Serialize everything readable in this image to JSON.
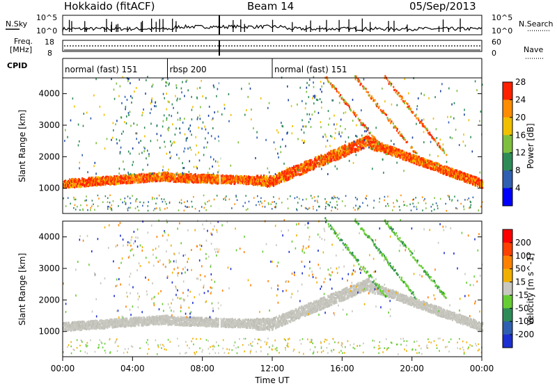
{
  "header": {
    "station": "Hokkaido (fitACF)",
    "beam": "Beam 14",
    "date": "05/Sep/2013"
  },
  "top_panels": {
    "nsky_label": "N.Sky",
    "nsky_ticks": [
      "10^5",
      "10^0"
    ],
    "nsearch_label": "N.Search",
    "nsearch_ticks": [
      "10^5",
      "10^0"
    ],
    "freq_label_1": "Freq.",
    "freq_label_2": "[MHz]",
    "freq_ticks": [
      "18",
      "8"
    ],
    "nave_label": "Nave",
    "nave_ticks": [
      "60",
      "0"
    ],
    "cpid_label": "CPID",
    "cpid_segments": [
      {
        "label": "normal (fast) 151",
        "start": 0,
        "end": 6
      },
      {
        "label": "rbsp 200",
        "start": 6,
        "end": 12
      },
      {
        "label": "normal (fast) 151",
        "start": 12,
        "end": 24
      }
    ]
  },
  "chart_data": [
    {
      "type": "heatmap",
      "name": "power",
      "ylabel": "Slant Range [km]",
      "yticks": [
        1000,
        2000,
        3000,
        4000
      ],
      "ylim": [
        200,
        4500
      ],
      "xlim": [
        0,
        24
      ],
      "colorbar_label": "Power [dB]",
      "colorbar_ticks": [
        "4",
        "8",
        "12",
        "16",
        "20",
        "24",
        "28"
      ],
      "colorbar_colors": [
        "#0000ff",
        "#2f5fb0",
        "#2e8b57",
        "#7fbf3f",
        "#f0c000",
        "#ff8c00",
        "#ff2000"
      ]
    },
    {
      "type": "heatmap",
      "name": "velocity",
      "ylabel": "Slant Range [km]",
      "yticks": [
        1000,
        2000,
        3000,
        4000
      ],
      "ylim": [
        200,
        4500
      ],
      "xlim": [
        0,
        24
      ],
      "colorbar_label": "Velocity [m s^-1]",
      "colorbar_ticks": [
        "200",
        "100",
        "50",
        "15",
        "-15",
        "-50",
        "-100",
        "-200"
      ],
      "colorbar_colors": [
        "#1c2fd0",
        "#2f5fb0",
        "#2e8b57",
        "#66cc33",
        "#c8c8c0",
        "#f0b000",
        "#ff8000",
        "#ff4000",
        "#ff0000"
      ]
    }
  ],
  "xaxis": {
    "ticks": [
      "00:00",
      "04:00",
      "08:00",
      "12:00",
      "16:00",
      "20:00",
      "00:00"
    ],
    "label": "Time UT"
  }
}
